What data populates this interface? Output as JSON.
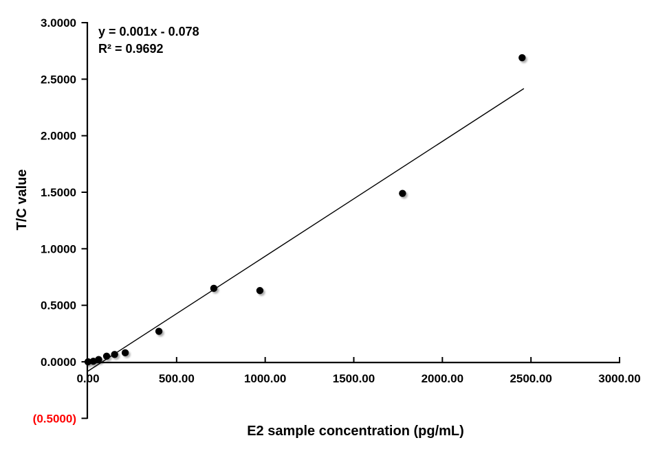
{
  "chart_data": {
    "type": "scatter",
    "title": "",
    "xlabel": "E2  sample concentration (pg/mL)",
    "ylabel": "T/C value",
    "annotation": {
      "equation": "y = 0.001x - 0.078",
      "r_squared": "R² = 0.9692"
    },
    "xlim": [
      0,
      3000
    ],
    "ylim": [
      -0.5,
      3.0
    ],
    "x_ticks": [
      0,
      500,
      1000,
      1500,
      2000,
      2500,
      3000
    ],
    "x_tick_labels": [
      "0.00",
      "500.00",
      "1000.00",
      "1500.00",
      "2000.00",
      "2500.00",
      "3000.00"
    ],
    "y_ticks": [
      3.0,
      2.5,
      2.0,
      1.5,
      1.0,
      0.5,
      0.0,
      -0.5
    ],
    "y_tick_labels": [
      "3.0000",
      "2.5000",
      "2.0000",
      "1.5000",
      "1.0000",
      "0.5000",
      "0.0000",
      "(0.5000)"
    ],
    "negative_tick_color": "#ff0000",
    "axis_color": "#000000",
    "marker_color": "#000000",
    "trendline_color": "#000000",
    "grid": false,
    "legend": false,
    "points": [
      [
        0,
        0.0
      ],
      [
        30,
        0.005
      ],
      [
        60,
        0.02
      ],
      [
        105,
        0.05
      ],
      [
        150,
        0.065
      ],
      [
        210,
        0.08
      ],
      [
        400,
        0.27
      ],
      [
        710,
        0.65
      ],
      [
        970,
        0.63
      ],
      [
        1775,
        1.49
      ],
      [
        2450,
        2.69
      ]
    ],
    "trendline": {
      "x1": 0,
      "y1": -0.082,
      "x2": 2460,
      "y2": 2.417
    }
  }
}
